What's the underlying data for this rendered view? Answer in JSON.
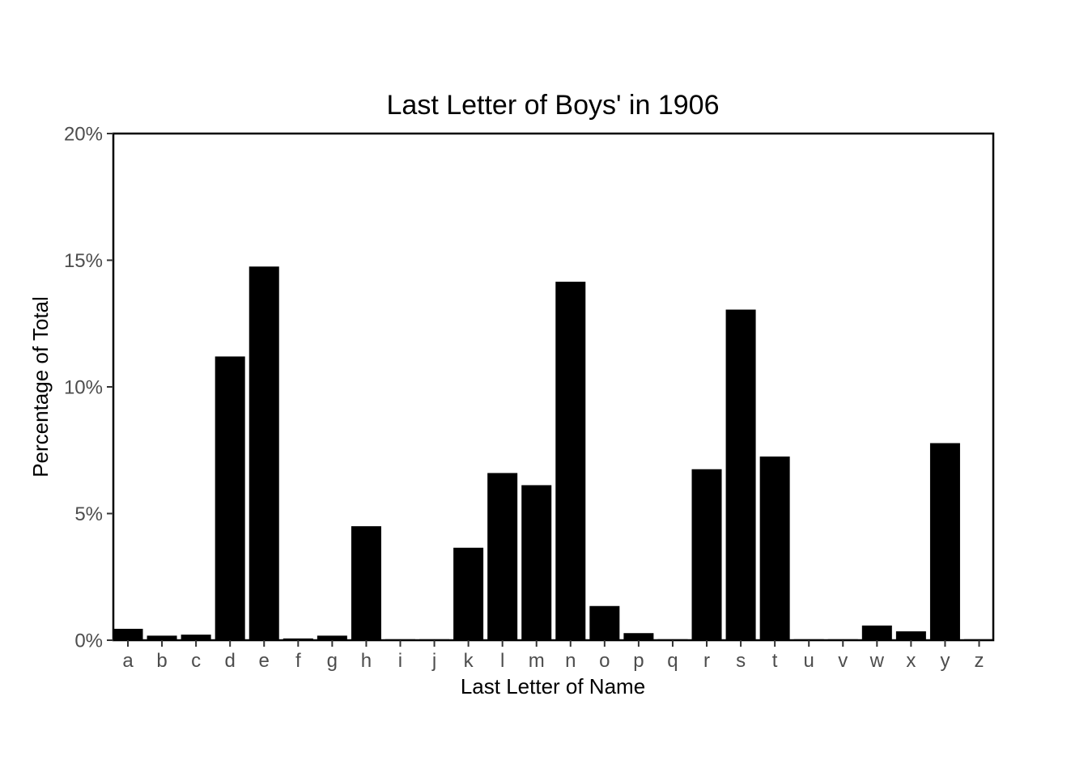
{
  "chart_data": {
    "type": "bar",
    "title": "Last Letter of Boys' in 1906",
    "xlabel": "Last Letter of Name",
    "ylabel": "Percentage of Total",
    "categories": [
      "a",
      "b",
      "c",
      "d",
      "e",
      "f",
      "g",
      "h",
      "i",
      "j",
      "k",
      "l",
      "m",
      "n",
      "o",
      "p",
      "q",
      "r",
      "s",
      "t",
      "u",
      "v",
      "w",
      "x",
      "y",
      "z"
    ],
    "values": [
      0.45,
      0.18,
      0.22,
      11.2,
      14.75,
      0.07,
      0.18,
      4.5,
      0.03,
      0.03,
      3.65,
      6.6,
      6.12,
      14.15,
      1.35,
      0.28,
      0.03,
      6.75,
      13.05,
      7.25,
      0.03,
      0.03,
      0.58,
      0.35,
      7.78,
      0.03
    ],
    "ylim": [
      0,
      20
    ],
    "yticks": [
      0,
      5,
      10,
      15,
      20
    ],
    "ytick_labels": [
      "0%",
      "5%",
      "10%",
      "15%",
      "20%"
    ],
    "bar_color": "#000000",
    "grid": false,
    "legend": false
  }
}
